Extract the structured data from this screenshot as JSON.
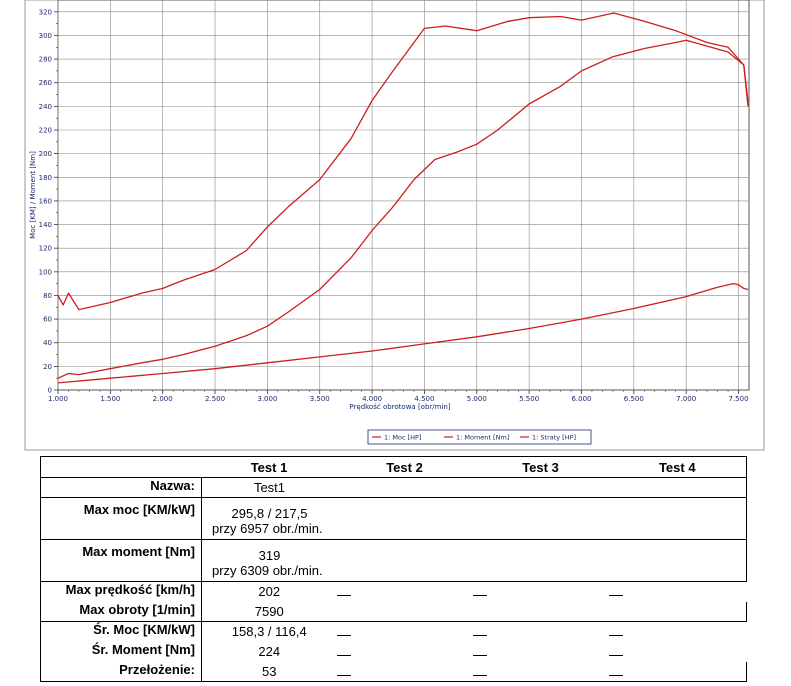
{
  "chart_data": {
    "type": "line",
    "xlabel": "Prędkość obrotowa [obr/min]",
    "ylabel": "Moc [KM] / Moment [Nm]",
    "xlim": [
      1000,
      7600
    ],
    "ylim": [
      0,
      330
    ],
    "x_ticks": [
      "1.000",
      "1.500",
      "2.000",
      "2.500",
      "3.000",
      "3.500",
      "4.000",
      "4.500",
      "5.000",
      "5.500",
      "6.000",
      "6.500",
      "7.000",
      "7.500"
    ],
    "y_ticks": [
      "0",
      "20",
      "40",
      "60",
      "80",
      "100",
      "120",
      "140",
      "160",
      "180",
      "200",
      "220",
      "240",
      "260",
      "280",
      "300",
      "320"
    ],
    "grid": true,
    "legend_position": "bottom-right",
    "line_color": "#cc1f1f",
    "series": [
      {
        "name": "1: Moc [HP]",
        "x": [
          1000,
          1100,
          1200,
          1500,
          1800,
          2000,
          2200,
          2500,
          2800,
          3000,
          3200,
          3500,
          3800,
          4000,
          4200,
          4400,
          4600,
          4800,
          5000,
          5200,
          5500,
          5800,
          6000,
          6300,
          6600,
          6900,
          7000,
          7200,
          7400,
          7550,
          7590
        ],
        "y": [
          10,
          14,
          13,
          18,
          23,
          26,
          30,
          37,
          46,
          54,
          66,
          85,
          112,
          135,
          155,
          178,
          195,
          201,
          208,
          220,
          242,
          257,
          270,
          282,
          289,
          294,
          296,
          291,
          286,
          275,
          244
        ]
      },
      {
        "name": "1: Moment [Nm]",
        "x": [
          1000,
          1050,
          1100,
          1150,
          1200,
          1500,
          1800,
          2000,
          2200,
          2500,
          2800,
          3000,
          3200,
          3500,
          3800,
          4000,
          4200,
          4400,
          4500,
          4700,
          5000,
          5300,
          5500,
          5800,
          6000,
          6309,
          6600,
          6900,
          7200,
          7400,
          7550,
          7590
        ],
        "y": [
          80,
          72,
          82,
          75,
          68,
          74,
          82,
          86,
          93,
          102,
          118,
          138,
          155,
          178,
          213,
          245,
          270,
          294,
          306,
          308,
          304,
          312,
          315,
          316,
          313,
          319,
          312,
          304,
          294,
          290,
          275,
          240
        ]
      },
      {
        "name": "1: Straty [HP]",
        "x": [
          1000,
          1500,
          2000,
          2500,
          3000,
          3500,
          4000,
          4500,
          5000,
          5500,
          6000,
          6500,
          7000,
          7300,
          7450,
          7500,
          7550,
          7590
        ],
        "y": [
          6,
          10,
          14,
          18,
          23,
          28,
          33,
          39,
          45,
          52,
          60,
          69,
          79,
          87,
          90,
          89,
          86,
          85
        ]
      }
    ]
  },
  "results": {
    "headers": [
      "Test 1",
      "Test 2",
      "Test 3",
      "Test 4"
    ],
    "nazwa_label": "Nazwa:",
    "nazwa_value": "Test1",
    "max_moc_label": "Max moc [KM/kW]",
    "max_moc_value": "295,8 / 217,5",
    "max_moc_sub": "przy 6957 obr./min.",
    "max_moment_label": "Max moment [Nm]",
    "max_moment_value": "319",
    "max_moment_sub": "przy 6309 obr./min.",
    "max_predkosc_label": "Max prędkość [km/h]",
    "max_predkosc_value": "202",
    "max_obroty_label": "Max obroty [1/min]",
    "max_obroty_value": "7590",
    "sr_moc_label": "Śr. Moc [KM/kW]",
    "sr_moc_value": "158,3 / 116,4",
    "sr_moment_label": "Śr. Moment [Nm]",
    "sr_moment_value": "224",
    "przelozenie_label": "Przełożenie:",
    "przelozenie_value": "53"
  }
}
